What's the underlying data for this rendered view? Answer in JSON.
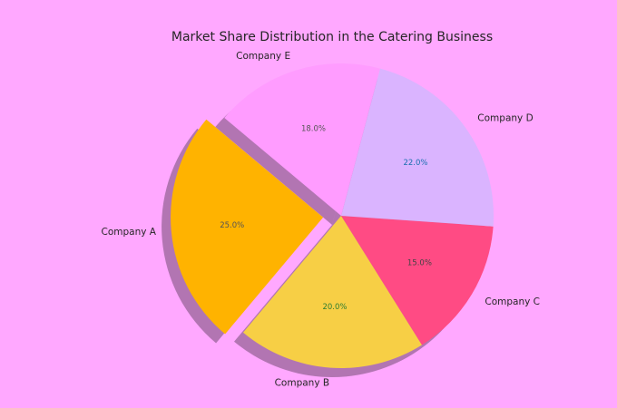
{
  "chart_data": {
    "type": "pie",
    "title": "Market Share Distribution in the Catering Business",
    "start_angle_deg": 140,
    "direction": "counterclockwise",
    "shadow": true,
    "slices": [
      {
        "label": "Company A",
        "value": 25.0,
        "pct_label": "25.0%",
        "color": "#ffb300",
        "pct_color": "#555555",
        "exploded": true
      },
      {
        "label": "Company B",
        "value": 20.0,
        "pct_label": "20.0%",
        "color": "#f7cf45",
        "pct_color": "#2e7d32",
        "exploded": false
      },
      {
        "label": "Company C",
        "value": 15.0,
        "pct_label": "15.0%",
        "color": "#ff4b84",
        "pct_color": "#444444",
        "exploded": false
      },
      {
        "label": "Company D",
        "value": 22.0,
        "pct_label": "22.0%",
        "color": "#dab4ff",
        "pct_color": "#1a6fb0",
        "exploded": false
      },
      {
        "label": "Company E",
        "value": 18.0,
        "pct_label": "18.0%",
        "color": "#ff9cff",
        "pct_color": "#555555",
        "exploded": false
      }
    ]
  }
}
